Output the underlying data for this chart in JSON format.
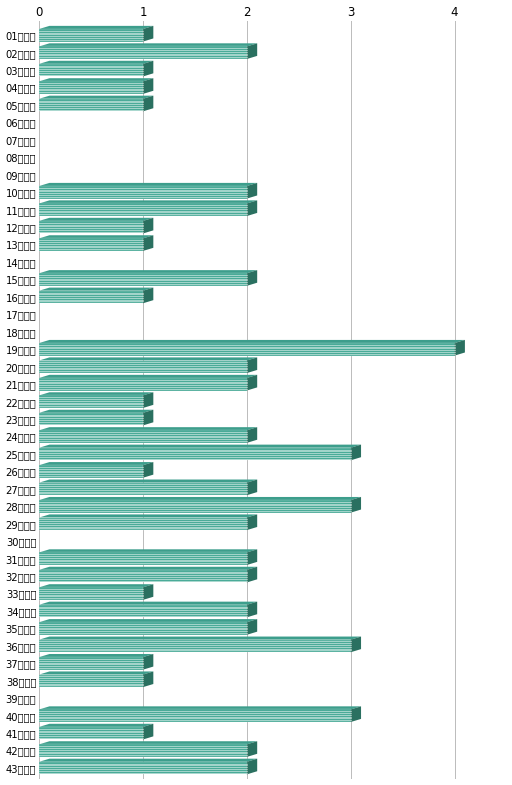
{
  "labels": [
    "01は１回",
    "02は２回",
    "03は１回",
    "04は１回",
    "05は１回",
    "06は０回",
    "07は０回",
    "08は０回",
    "09は０回",
    "10は２回",
    "11は２回",
    "12は１回",
    "13は１回",
    "14は０回",
    "15は２回",
    "16は１回",
    "17は０回",
    "18は０回",
    "19は４回",
    "20は２回",
    "21は２回",
    "22は１回",
    "23は１回",
    "24は２回",
    "25は３回",
    "26は１回",
    "27は２回",
    "28は３回",
    "29は２回",
    "30は０回",
    "31は２回",
    "32は２回",
    "33は１回",
    "34は２回",
    "35は２回",
    "36は３回",
    "37は１回",
    "38は１回",
    "39は０回",
    "40は３回",
    "41は１回",
    "42は２回",
    "43は２回"
  ],
  "values": [
    1,
    2,
    1,
    1,
    1,
    0,
    0,
    0,
    0,
    2,
    2,
    1,
    1,
    0,
    2,
    1,
    0,
    0,
    4,
    2,
    2,
    1,
    1,
    2,
    3,
    1,
    2,
    3,
    2,
    0,
    2,
    2,
    1,
    2,
    2,
    3,
    1,
    1,
    0,
    3,
    1,
    2,
    2
  ],
  "bar_color_front": "#4aab98",
  "bar_color_top": "#3d9e8c",
  "bar_color_side": "#2a7060",
  "xlim": [
    0,
    4.5
  ],
  "xticks": [
    0,
    1,
    2,
    3,
    4
  ],
  "background_color": "#ffffff",
  "grid_color": "#aaaaaa",
  "bar_height": 0.72,
  "label_fontsize": 7.2,
  "tick_fontsize": 8.5
}
